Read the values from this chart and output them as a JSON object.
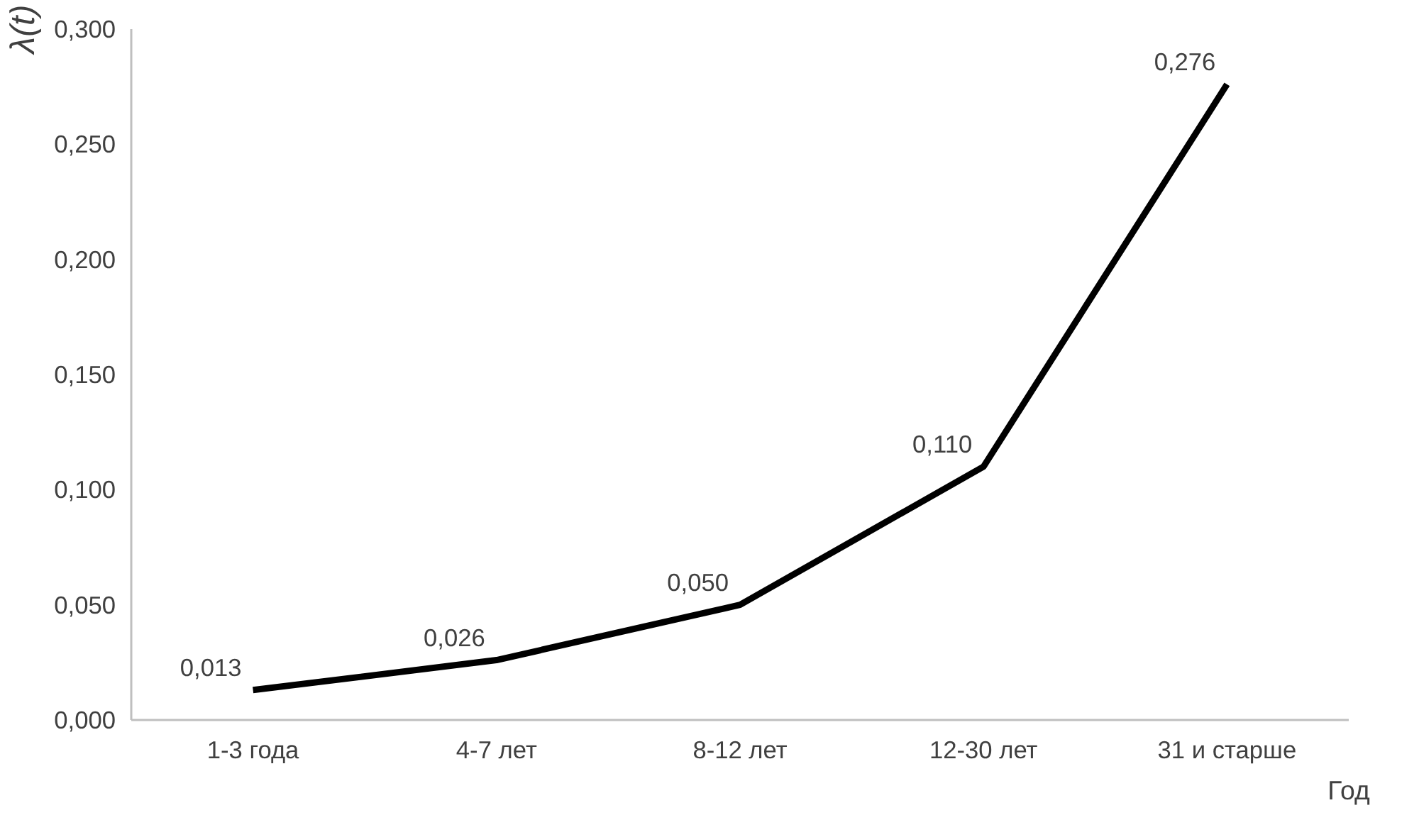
{
  "chart_data": {
    "type": "line",
    "xlabel": "Год",
    "ylabel": "λ(t)",
    "categories": [
      "1-3 года",
      "4-7 лет",
      "8-12 лет",
      "12-30 лет",
      "31 и старше"
    ],
    "series": [
      {
        "color": "#000000",
        "values": [
          0.013,
          0.026,
          0.05,
          0.11,
          0.276
        ],
        "value_labels": [
          "0,013",
          "0,026",
          "0,050",
          "0,110",
          "0,276"
        ]
      }
    ],
    "ylim": [
      0,
      0.3
    ],
    "yticks": [
      {
        "value": 0,
        "label": "0,000"
      },
      {
        "value": 0.05,
        "label": "0,050"
      },
      {
        "value": 0.1,
        "label": "0,100"
      },
      {
        "value": 0.15,
        "label": "0,150"
      },
      {
        "value": 0.2,
        "label": "0,200"
      },
      {
        "value": 0.25,
        "label": "0,250"
      },
      {
        "value": 0.3,
        "label": "0,300"
      }
    ],
    "grid": false,
    "marker": "none",
    "line_style": "solid"
  }
}
